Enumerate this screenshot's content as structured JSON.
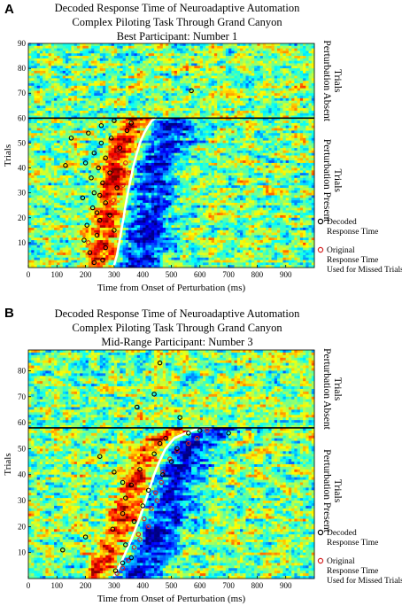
{
  "figure": {
    "panel_a_letter": "A",
    "panel_b_letter": "B"
  },
  "chart_data": [
    {
      "type": "heatmap",
      "panel": "A",
      "title_lines": [
        "Decoded Response Time of Neuroadaptive Automation",
        "Complex Piloting Task Through Grand Canyon",
        "Best Participant: Number 1"
      ],
      "xlabel": "Time from Onset of Perturbation (ms)",
      "ylabel": "Trials",
      "xlim": [
        0,
        1000
      ],
      "ylim": [
        0,
        90
      ],
      "xticks": [
        0,
        100,
        200,
        300,
        400,
        500,
        600,
        700,
        800,
        900
      ],
      "yticks": [
        10,
        20,
        30,
        40,
        50,
        60,
        70,
        80,
        90
      ],
      "divider_trial": 60,
      "region_labels": {
        "absent": "Perturbation Absent Trials",
        "present": "Perturbation Present Trials"
      },
      "legend": [
        {
          "label": "Decoded Response Time",
          "color": "#000000"
        },
        {
          "label": "Original Response Time Used for Missed Trials",
          "color": "#d42020"
        }
      ],
      "response_curve": [
        [
          300,
          1
        ],
        [
          310,
          5
        ],
        [
          318,
          10
        ],
        [
          325,
          15
        ],
        [
          333,
          20
        ],
        [
          340,
          25
        ],
        [
          348,
          30
        ],
        [
          357,
          35
        ],
        [
          366,
          40
        ],
        [
          377,
          45
        ],
        [
          390,
          50
        ],
        [
          405,
          54
        ],
        [
          420,
          57
        ],
        [
          432,
          59
        ],
        [
          445,
          60
        ]
      ],
      "decoded_points": [
        [
          230,
          2
        ],
        [
          260,
          3
        ],
        [
          215,
          6
        ],
        [
          270,
          8
        ],
        [
          195,
          11
        ],
        [
          240,
          13
        ],
        [
          300,
          15
        ],
        [
          205,
          17
        ],
        [
          250,
          19
        ],
        [
          285,
          21
        ],
        [
          225,
          24
        ],
        [
          270,
          26
        ],
        [
          190,
          28
        ],
        [
          230,
          30
        ],
        [
          310,
          32
        ],
        [
          260,
          34
        ],
        [
          220,
          36
        ],
        [
          285,
          38
        ],
        [
          245,
          40
        ],
        [
          200,
          42
        ],
        [
          270,
          44
        ],
        [
          230,
          46
        ],
        [
          320,
          48
        ],
        [
          255,
          50
        ],
        [
          290,
          52
        ],
        [
          210,
          54
        ],
        [
          345,
          55
        ],
        [
          255,
          57
        ],
        [
          360,
          58
        ],
        [
          300,
          59
        ],
        [
          570,
          71
        ],
        [
          150,
          52
        ],
        [
          130,
          41
        ],
        [
          250,
          29
        ],
        [
          240,
          22
        ]
      ],
      "missed_points": [
        [
          305,
          44
        ],
        [
          340,
          42
        ],
        [
          350,
          38
        ],
        [
          330,
          33
        ],
        [
          298,
          27
        ],
        [
          315,
          47
        ],
        [
          210,
          10
        ],
        [
          240,
          7
        ]
      ]
    },
    {
      "type": "heatmap",
      "panel": "B",
      "title_lines": [
        "Decoded Response Time of Neuroadaptive Automation",
        "Complex Piloting Task Through Grand Canyon",
        "Mid-Range Participant: Number 3"
      ],
      "xlabel": "Time from Onset of Perturbation (ms)",
      "ylabel": "Trials",
      "xlim": [
        0,
        1000
      ],
      "ylim": [
        0,
        88
      ],
      "xticks": [
        0,
        100,
        200,
        300,
        400,
        500,
        600,
        700,
        800,
        900
      ],
      "yticks": [
        10,
        20,
        30,
        40,
        50,
        60,
        70,
        80
      ],
      "divider_trial": 58,
      "region_labels": {
        "absent": "Perturbation Absent Trials",
        "present": "Perturbation Present Trials"
      },
      "legend": [
        {
          "label": "Decoded Response Time",
          "color": "#000000"
        },
        {
          "label": "Original Response Time Used for Missed Trials",
          "color": "#d42020"
        }
      ],
      "response_curve": [
        [
          300,
          1
        ],
        [
          320,
          5
        ],
        [
          340,
          10
        ],
        [
          360,
          15
        ],
        [
          378,
          20
        ],
        [
          395,
          25
        ],
        [
          410,
          30
        ],
        [
          425,
          35
        ],
        [
          440,
          40
        ],
        [
          458,
          45
        ],
        [
          480,
          50
        ],
        [
          510,
          54
        ],
        [
          550,
          56
        ],
        [
          600,
          58
        ],
        [
          640,
          58
        ]
      ],
      "decoded_points": [
        [
          305,
          3
        ],
        [
          330,
          6
        ],
        [
          120,
          11
        ],
        [
          360,
          8
        ],
        [
          200,
          16
        ],
        [
          340,
          13
        ],
        [
          295,
          19
        ],
        [
          370,
          22
        ],
        [
          330,
          25
        ],
        [
          400,
          28
        ],
        [
          340,
          31
        ],
        [
          420,
          34
        ],
        [
          360,
          36
        ],
        [
          470,
          40
        ],
        [
          390,
          42
        ],
        [
          500,
          45
        ],
        [
          440,
          48
        ],
        [
          520,
          50
        ],
        [
          460,
          52
        ],
        [
          480,
          54
        ],
        [
          560,
          56
        ],
        [
          600,
          57
        ],
        [
          530,
          62
        ],
        [
          440,
          71
        ],
        [
          380,
          66
        ],
        [
          460,
          83
        ],
        [
          700,
          56
        ],
        [
          250,
          47
        ],
        [
          300,
          41
        ],
        [
          330,
          37
        ]
      ],
      "missed_points": [
        [
          310,
          2
        ],
        [
          330,
          4
        ],
        [
          350,
          7
        ],
        [
          370,
          12
        ],
        [
          385,
          17
        ],
        [
          405,
          23
        ],
        [
          430,
          27
        ],
        [
          445,
          33
        ],
        [
          465,
          37
        ],
        [
          470,
          41
        ],
        [
          495,
          46
        ],
        [
          520,
          49
        ],
        [
          560,
          52
        ],
        [
          590,
          54
        ],
        [
          625,
          57
        ],
        [
          450,
          30
        ],
        [
          420,
          20
        ],
        [
          390,
          15
        ]
      ]
    }
  ]
}
